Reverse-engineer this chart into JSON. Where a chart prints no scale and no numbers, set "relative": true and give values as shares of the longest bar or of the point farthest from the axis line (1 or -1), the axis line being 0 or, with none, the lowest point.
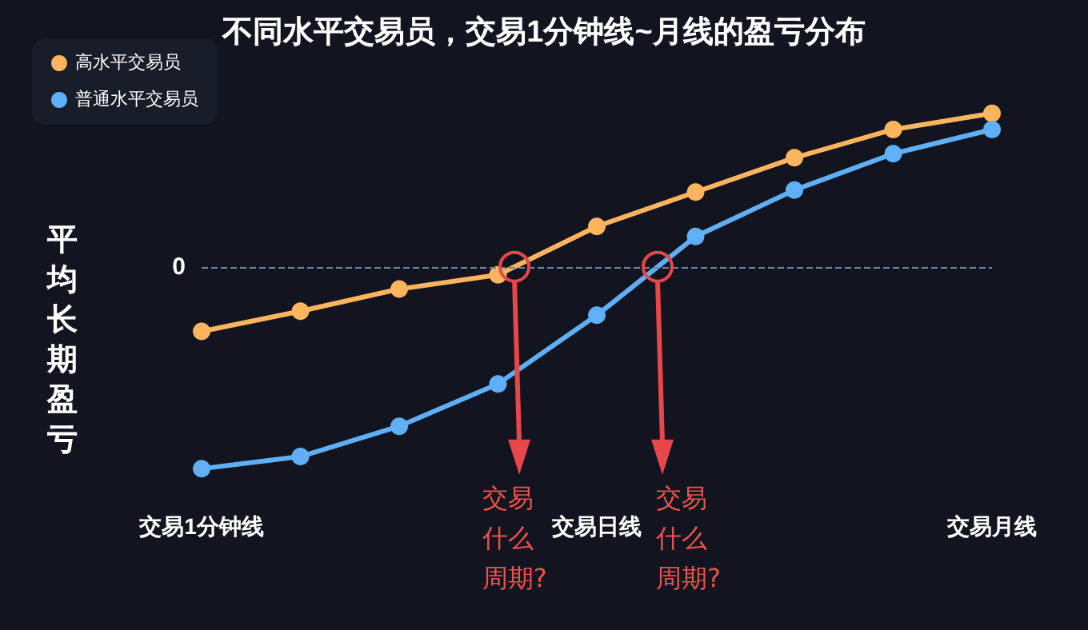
{
  "chart_data": {
    "type": "line",
    "title": "不同水平交易员，交易1分钟线~月线的盈亏分布",
    "ylabel": "平均长期盈亏",
    "relative": true,
    "categories": [
      "交易1分钟线",
      null,
      null,
      null,
      "交易日线",
      null,
      null,
      null,
      "交易月线"
    ],
    "series": [
      {
        "name": "高水平交易员",
        "color": "#ffb45e",
        "values": [
          -0.32,
          -0.22,
          -0.11,
          -0.04,
          0.2,
          0.37,
          0.54,
          0.68,
          0.76
        ]
      },
      {
        "name": "普通水平交易员",
        "color": "#5fb0f7",
        "values": [
          -1,
          -0.94,
          -0.79,
          -0.58,
          -0.24,
          0.15,
          0.38,
          0.56,
          0.68
        ]
      }
    ],
    "ref_lines": [
      {
        "axis": "y",
        "value": 0,
        "label": "0",
        "color": "#6e86a8",
        "line_style": "dashed"
      }
    ],
    "annotations": [
      "交易什么周期?",
      "交易什么周期?"
    ],
    "legend": "top left",
    "marker": "circle",
    "line_style": "solid",
    "grid": false
  }
}
